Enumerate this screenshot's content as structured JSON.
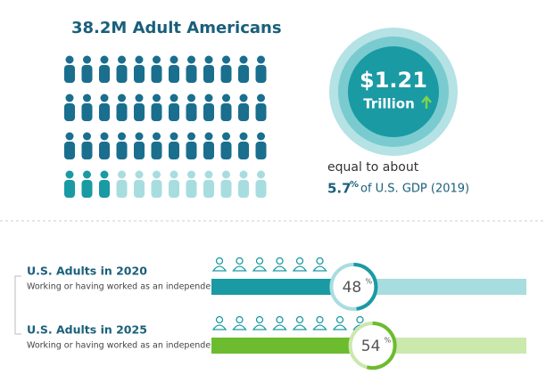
{
  "header": {
    "title": "38.2M Adult Americans"
  },
  "value_badge": {
    "amount": "$1.21",
    "unit": "Trillion"
  },
  "gdp_note": {
    "lead": "equal to about",
    "share": 5.7,
    "unit": "%",
    "rest": "of U.S. GDP (2019)"
  },
  "groups": [
    {
      "title": "U.S. Adults in 2020",
      "subtitle": "Working or having worked as an independent",
      "percent": 48,
      "unit": "%",
      "color": "#1a9aa3",
      "light": "#a8dde0"
    },
    {
      "title": "U.S. Adults in 2025",
      "subtitle": "Working or having worked as an independent",
      "percent": 54,
      "unit": "%",
      "color": "#6dbb2f",
      "light": "#cbe8ad"
    }
  ]
}
